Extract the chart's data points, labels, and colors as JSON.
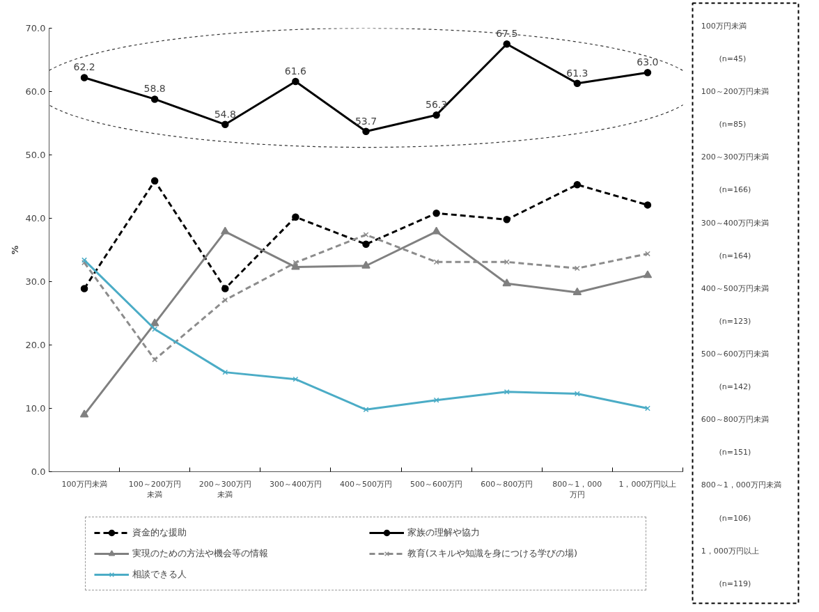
{
  "chart_data": {
    "type": "line",
    "ylabel": "%",
    "categories": [
      "100万円未満",
      "100～200万円未満",
      "200～300万円未満",
      "300～400万円",
      "400～500万円",
      "500～600万円",
      "600～800万円",
      "800～1，000万円",
      "1，000万円以上"
    ],
    "series": [
      {
        "name": "資金的な援助",
        "color": "#000000",
        "line_style": "dashed",
        "marker": "circle",
        "values": [
          28.9,
          45.9,
          28.9,
          40.2,
          35.9,
          40.8,
          39.8,
          45.3,
          42.1
        ]
      },
      {
        "name": "家族の理解や協力",
        "color": "#000000",
        "line_style": "solid",
        "marker": "circle",
        "values": [
          62.2,
          58.8,
          54.8,
          61.6,
          53.7,
          56.3,
          67.5,
          61.3,
          63.0
        ],
        "value_labels": [
          "62.2",
          "58.8",
          "54.8",
          "61.6",
          "53.7",
          "56.3",
          "67.5",
          "61.3",
          "63.0"
        ]
      },
      {
        "name": "実現のための方法や機会等の情報",
        "color": "#808080",
        "line_style": "solid",
        "marker": "triangle",
        "values": [
          9.0,
          23.4,
          37.9,
          32.3,
          32.5,
          37.9,
          29.7,
          28.3,
          31.0
        ]
      },
      {
        "name": "教育(スキルや知識を身につける学びの場)",
        "color": "#8c8c8c",
        "line_style": "dashed",
        "marker": "cross",
        "values": [
          33.0,
          17.7,
          27.1,
          33.0,
          37.4,
          33.1,
          33.1,
          32.1,
          34.4
        ]
      },
      {
        "name": "相談できる人",
        "color": "#4bacc6",
        "line_style": "solid",
        "marker": "cross",
        "values": [
          33.4,
          22.5,
          15.7,
          14.6,
          9.8,
          11.3,
          12.6,
          12.3,
          10.0
        ]
      }
    ],
    "ylim": [
      0,
      70
    ],
    "yticks": [
      {
        "value": 0,
        "label": "0.0"
      },
      {
        "value": 10,
        "label": "10.0"
      },
      {
        "value": 20,
        "label": "20.0"
      },
      {
        "value": 30,
        "label": "30.0"
      },
      {
        "value": 40,
        "label": "40.0"
      },
      {
        "value": 50,
        "label": "50.0"
      },
      {
        "value": 60,
        "label": "60.0"
      },
      {
        "value": 70,
        "label": "70.0"
      }
    ],
    "grid": false,
    "legend": "bottom",
    "annotations": [
      "100万円未満",
      "(n=45)",
      "100～200万円未満",
      "(n=85)",
      "200～300万円未満",
      "(n=166)",
      "300～400万円未満",
      "(n=164)",
      "400～500万円未満",
      "(n=123)",
      "500～600万円未満",
      "(n=142)",
      "600～800万円未満",
      "(n=151)",
      "800～1，000万円未満",
      "(n=106)",
      "1，000万円以上",
      "(n=119)"
    ]
  }
}
